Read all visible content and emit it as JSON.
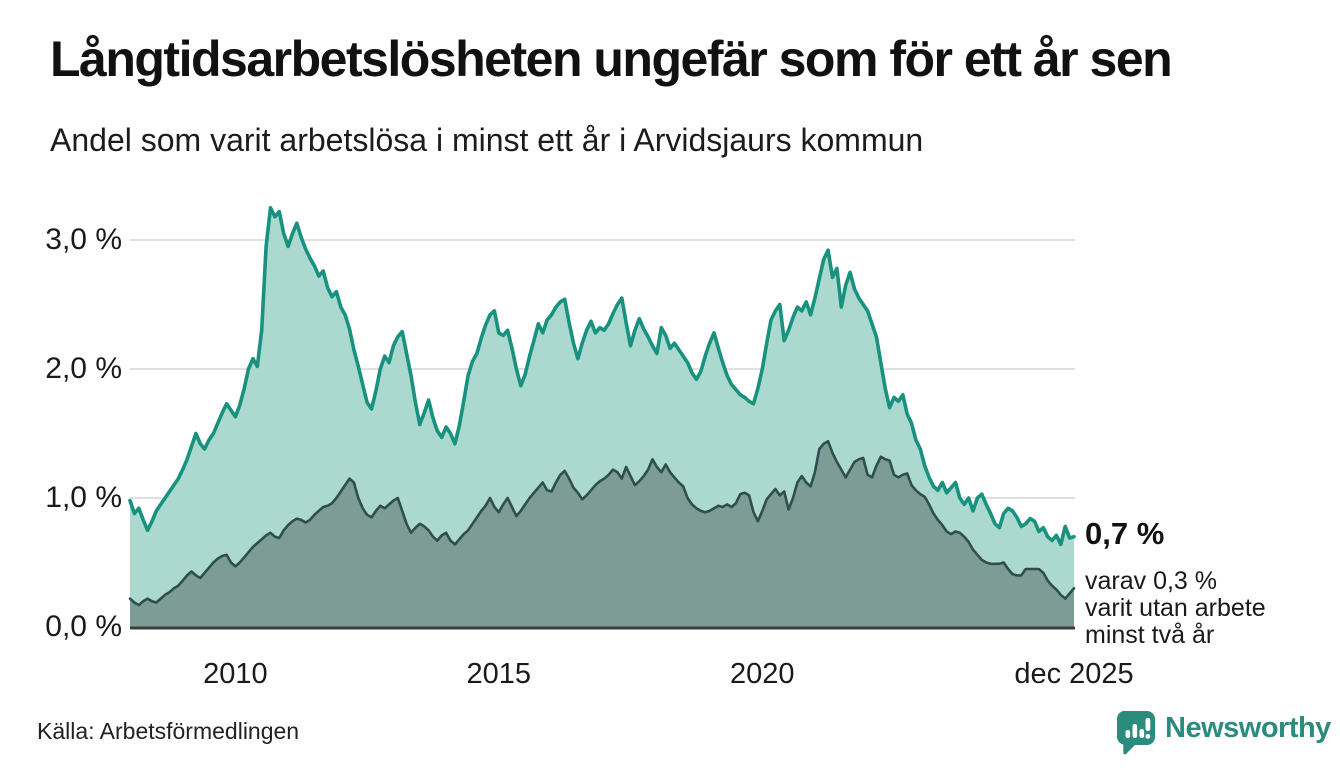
{
  "header": {
    "title": "Långtidsarbetslösheten ungefär som för ett år sen",
    "subtitle": "Andel som varit arbetslösa i minst ett år i Arvidsjaurs kommun"
  },
  "chart_data": {
    "type": "area",
    "title": "Långtidsarbetslösheten ungefär som för ett år sen",
    "subtitle": "Andel som varit arbetslösa i minst ett år i Arvidsjaurs kommun",
    "unit": "%",
    "grid": true,
    "legend_position": "none",
    "x_start": "2008-01",
    "x_end": "2025-12",
    "x_ticks": [
      {
        "year": 2010,
        "label": "2010"
      },
      {
        "year": 2015,
        "label": "2015"
      },
      {
        "year": 2020,
        "label": "2020"
      },
      {
        "year": 2025.917,
        "label": "dec 2025"
      }
    ],
    "y_ticks": [
      0,
      1,
      2,
      3
    ],
    "y_tick_labels": [
      "0,0 %",
      "1,0 %",
      "2,0 %",
      "3,0 %"
    ],
    "ylim": [
      0,
      3.4
    ],
    "series": [
      {
        "name": "Andel arbetslösa i minst ett år",
        "line_color": "#18917f",
        "fill_color": "#abd9d0",
        "latest_label": "0,7 %",
        "values": [
          0.98,
          0.88,
          0.92,
          0.83,
          0.75,
          0.82,
          0.9,
          0.95,
          1.0,
          1.05,
          1.1,
          1.15,
          1.22,
          1.3,
          1.4,
          1.5,
          1.42,
          1.38,
          1.45,
          1.5,
          1.58,
          1.66,
          1.73,
          1.68,
          1.63,
          1.72,
          1.85,
          2.0,
          2.08,
          2.02,
          2.3,
          2.95,
          3.25,
          3.18,
          3.22,
          3.05,
          2.95,
          3.05,
          3.13,
          3.02,
          2.93,
          2.86,
          2.8,
          2.72,
          2.76,
          2.63,
          2.56,
          2.6,
          2.48,
          2.42,
          2.31,
          2.15,
          2.02,
          1.88,
          1.74,
          1.69,
          1.83,
          2.0,
          2.1,
          2.05,
          2.18,
          2.25,
          2.29,
          2.12,
          1.95,
          1.74,
          1.57,
          1.66,
          1.76,
          1.62,
          1.52,
          1.47,
          1.55,
          1.5,
          1.42,
          1.56,
          1.75,
          1.95,
          2.06,
          2.12,
          2.24,
          2.34,
          2.42,
          2.45,
          2.28,
          2.26,
          2.3,
          2.16,
          2.0,
          1.87,
          1.96,
          2.1,
          2.22,
          2.35,
          2.28,
          2.38,
          2.42,
          2.48,
          2.52,
          2.54,
          2.36,
          2.2,
          2.08,
          2.2,
          2.3,
          2.37,
          2.28,
          2.32,
          2.3,
          2.35,
          2.43,
          2.5,
          2.55,
          2.36,
          2.18,
          2.3,
          2.39,
          2.31,
          2.25,
          2.18,
          2.12,
          2.32,
          2.26,
          2.16,
          2.2,
          2.15,
          2.1,
          2.05,
          1.97,
          1.92,
          1.98,
          2.1,
          2.2,
          2.28,
          2.16,
          2.05,
          1.95,
          1.88,
          1.84,
          1.8,
          1.78,
          1.75,
          1.73,
          1.85,
          2.0,
          2.2,
          2.38,
          2.45,
          2.5,
          2.22,
          2.3,
          2.4,
          2.48,
          2.45,
          2.52,
          2.42,
          2.55,
          2.7,
          2.85,
          2.92,
          2.71,
          2.78,
          2.48,
          2.65,
          2.75,
          2.62,
          2.55,
          2.5,
          2.45,
          2.35,
          2.25,
          2.05,
          1.85,
          1.7,
          1.78,
          1.75,
          1.8,
          1.65,
          1.58,
          1.45,
          1.38,
          1.25,
          1.16,
          1.09,
          1.06,
          1.12,
          1.04,
          1.08,
          1.12,
          1.0,
          0.95,
          1.0,
          0.9,
          1.0,
          1.03,
          0.95,
          0.88,
          0.8,
          0.77,
          0.88,
          0.92,
          0.9,
          0.85,
          0.78,
          0.8,
          0.84,
          0.82,
          0.74,
          0.77,
          0.7,
          0.67,
          0.71,
          0.64,
          0.78,
          0.69,
          0.7
        ]
      },
      {
        "name": "varav arbetslösa minst två år",
        "line_color": "#2f4f4c",
        "fill_color": "#7d9c96",
        "latest_label": "0,3 %",
        "values": [
          0.22,
          0.19,
          0.17,
          0.2,
          0.22,
          0.2,
          0.19,
          0.22,
          0.25,
          0.27,
          0.3,
          0.32,
          0.36,
          0.4,
          0.43,
          0.4,
          0.38,
          0.42,
          0.46,
          0.5,
          0.53,
          0.55,
          0.56,
          0.5,
          0.47,
          0.5,
          0.54,
          0.58,
          0.62,
          0.65,
          0.68,
          0.71,
          0.73,
          0.7,
          0.69,
          0.75,
          0.79,
          0.82,
          0.84,
          0.83,
          0.81,
          0.83,
          0.87,
          0.9,
          0.93,
          0.94,
          0.96,
          1.0,
          1.05,
          1.1,
          1.15,
          1.12,
          1.0,
          0.92,
          0.87,
          0.85,
          0.9,
          0.94,
          0.92,
          0.95,
          0.98,
          1.0,
          0.9,
          0.8,
          0.73,
          0.77,
          0.8,
          0.78,
          0.75,
          0.7,
          0.67,
          0.71,
          0.73,
          0.67,
          0.64,
          0.68,
          0.72,
          0.75,
          0.8,
          0.85,
          0.9,
          0.94,
          1.0,
          0.93,
          0.89,
          0.95,
          1.0,
          0.93,
          0.86,
          0.9,
          0.95,
          1.0,
          1.04,
          1.08,
          1.12,
          1.06,
          1.05,
          1.12,
          1.18,
          1.21,
          1.15,
          1.08,
          1.04,
          0.99,
          1.02,
          1.06,
          1.1,
          1.13,
          1.15,
          1.18,
          1.22,
          1.2,
          1.15,
          1.24,
          1.17,
          1.1,
          1.13,
          1.17,
          1.22,
          1.3,
          1.24,
          1.2,
          1.26,
          1.2,
          1.16,
          1.12,
          1.09,
          1.0,
          0.95,
          0.92,
          0.9,
          0.89,
          0.9,
          0.92,
          0.94,
          0.93,
          0.95,
          0.93,
          0.96,
          1.03,
          1.04,
          1.02,
          0.89,
          0.82,
          0.9,
          0.99,
          1.03,
          1.07,
          1.02,
          1.05,
          0.91,
          1.0,
          1.12,
          1.17,
          1.12,
          1.09,
          1.2,
          1.38,
          1.42,
          1.44,
          1.35,
          1.28,
          1.22,
          1.16,
          1.22,
          1.28,
          1.3,
          1.31,
          1.18,
          1.16,
          1.25,
          1.32,
          1.3,
          1.29,
          1.18,
          1.16,
          1.18,
          1.19,
          1.1,
          1.06,
          1.03,
          1.01,
          0.95,
          0.88,
          0.83,
          0.79,
          0.74,
          0.72,
          0.74,
          0.73,
          0.7,
          0.66,
          0.6,
          0.56,
          0.52,
          0.5,
          0.49,
          0.49,
          0.49,
          0.5,
          0.45,
          0.41,
          0.4,
          0.4,
          0.45,
          0.45,
          0.45,
          0.45,
          0.42,
          0.36,
          0.32,
          0.29,
          0.25,
          0.22,
          0.26,
          0.3
        ]
      }
    ],
    "gridline_color": "#e0e0e0",
    "baseline_color": "#3c3c3c"
  },
  "annotation": {
    "value_label": "0,7 %",
    "detail_lines": [
      "varav 0,3 %",
      "varit utan arbete",
      "minst två år"
    ]
  },
  "footer": {
    "source": "Källa: Arbetsförmedlingen",
    "brand": "Newsworthy",
    "brand_color": "#2b8c7e"
  }
}
